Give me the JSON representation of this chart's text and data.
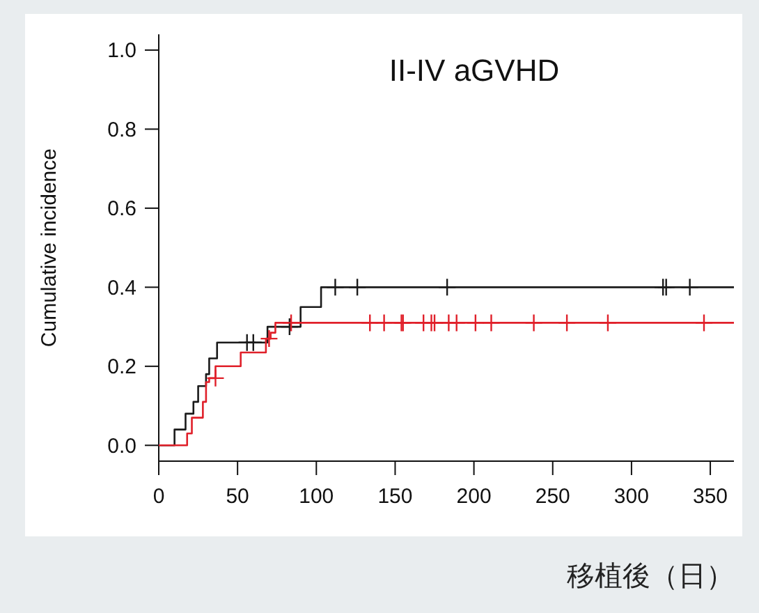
{
  "chart_data": {
    "type": "step",
    "title": "II-IV aGVHD",
    "xlabel": "移植後（日）",
    "ylabel": "Cumulative incidence",
    "xlim": [
      0,
      365
    ],
    "ylim": [
      -0.04,
      1.04
    ],
    "xticks": [
      0,
      50,
      100,
      150,
      200,
      250,
      300,
      350
    ],
    "yticks": [
      {
        "value": 0,
        "label": "0.0"
      },
      {
        "value": 0.2,
        "label": "0.2"
      },
      {
        "value": 0.4,
        "label": "0.4"
      },
      {
        "value": 0.6,
        "label": "0.6"
      },
      {
        "value": 0.8,
        "label": "0.8"
      },
      {
        "value": 1,
        "label": "1.0"
      }
    ],
    "grid": false,
    "series": [
      {
        "color": "#1a1a1a",
        "x": [
          0,
          10,
          17,
          22,
          25,
          30,
          32,
          37,
          69,
          90,
          103,
          365
        ],
        "values": [
          0,
          0.04,
          0.08,
          0.11,
          0.15,
          0.18,
          0.22,
          0.26,
          0.3,
          0.35,
          0.4,
          0.4
        ]
      },
      {
        "color": "#e0202a",
        "x": [
          0,
          18,
          21,
          28,
          30,
          32,
          36,
          52,
          68,
          71,
          74,
          365
        ],
        "values": [
          0,
          0.03,
          0.07,
          0.11,
          0.16,
          0.17,
          0.2,
          0.235,
          0.27,
          0.285,
          0.31,
          0.31
        ]
      },
      {
        "type": "scatter",
        "marker": "cross",
        "color": "#1a1a1a",
        "x": [
          56,
          60,
          83,
          112,
          126,
          183,
          320,
          322,
          337
        ],
        "values": [
          0.26,
          0.26,
          0.3,
          0.4,
          0.4,
          0.4,
          0.4,
          0.4,
          0.4
        ]
      },
      {
        "type": "scatter",
        "marker": "cross",
        "color": "#e0202a",
        "x": [
          36,
          70,
          84,
          134,
          143,
          154,
          155,
          168,
          173,
          175,
          184,
          189,
          201,
          211,
          238,
          259,
          285,
          346
        ],
        "values": [
          0.17,
          0.27,
          0.31,
          0.31,
          0.31,
          0.31,
          0.31,
          0.31,
          0.31,
          0.31,
          0.31,
          0.31,
          0.31,
          0.31,
          0.31,
          0.31,
          0.31,
          0.31
        ]
      }
    ]
  }
}
